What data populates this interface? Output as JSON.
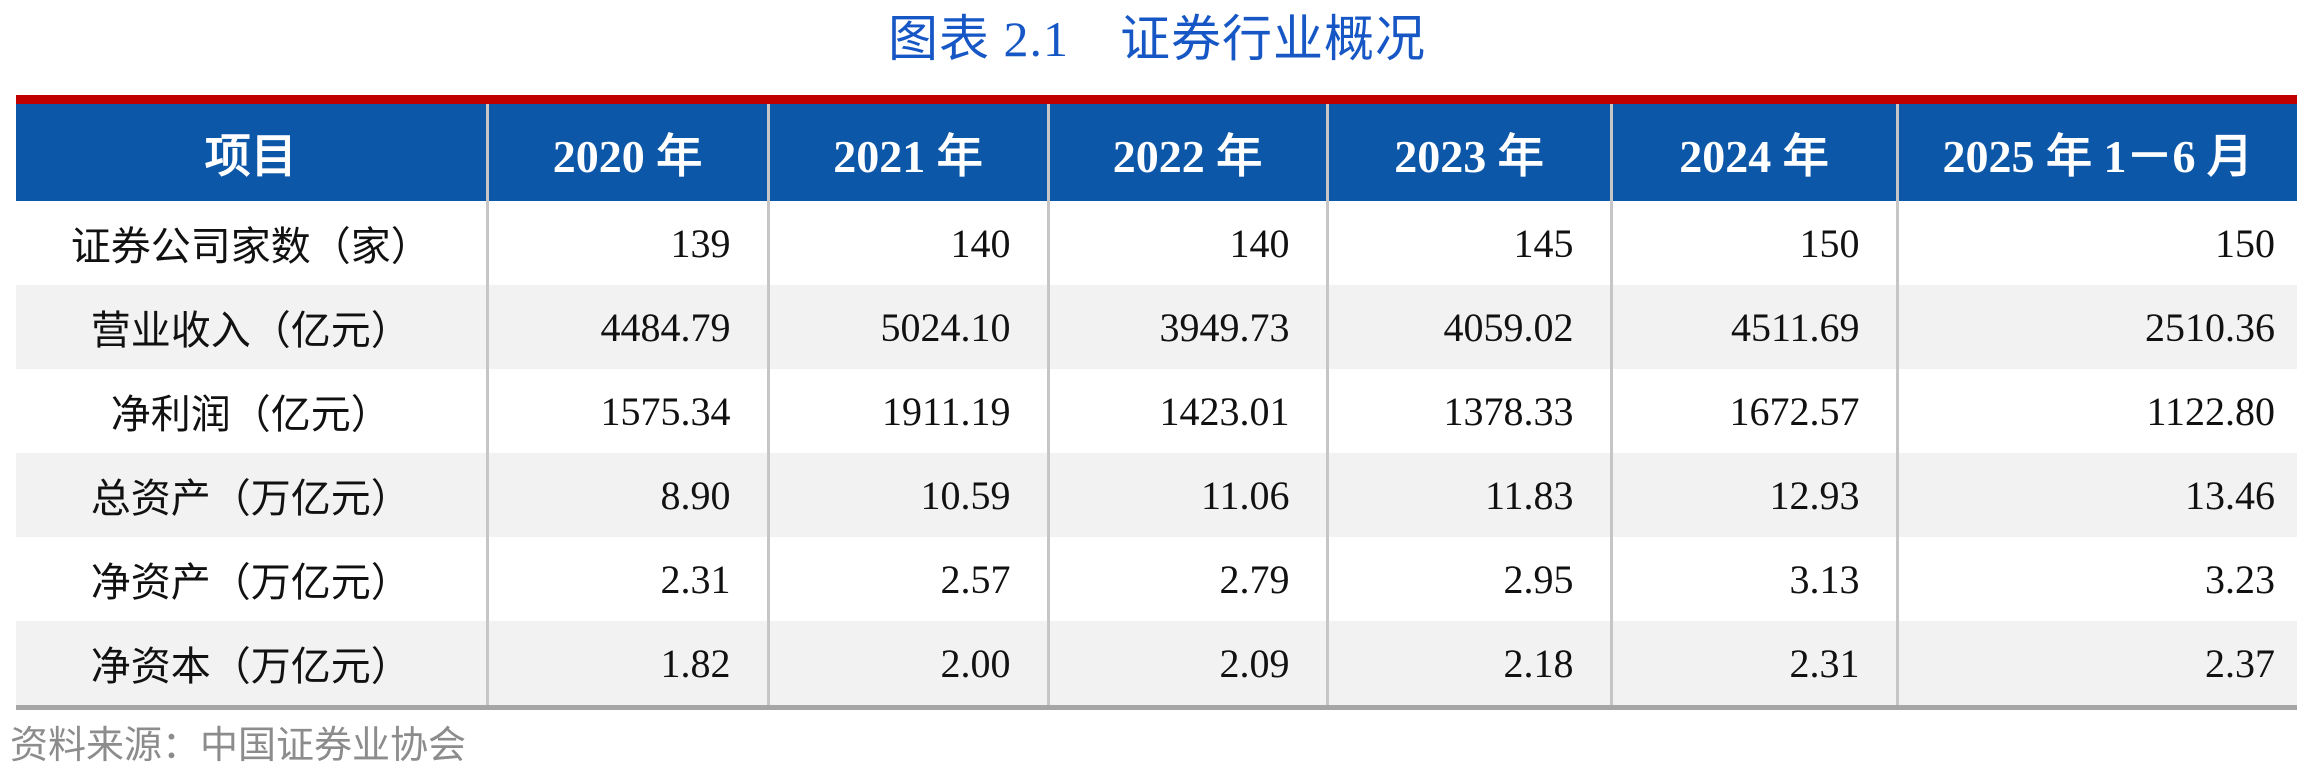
{
  "title": "图表 2.1　证券行业概况",
  "table": {
    "columns": [
      "项目",
      "2020 年",
      "2021 年",
      "2022 年",
      "2023 年",
      "2024 年",
      "2025 年 1－6 月"
    ],
    "rows": [
      {
        "label": "证券公司家数（家）",
        "values": [
          "139",
          "140",
          "140",
          "145",
          "150",
          "150"
        ]
      },
      {
        "label": "营业收入（亿元）",
        "values": [
          "4484.79",
          "5024.10",
          "3949.73",
          "4059.02",
          "4511.69",
          "2510.36"
        ]
      },
      {
        "label": "净利润（亿元）",
        "values": [
          "1575.34",
          "1911.19",
          "1423.01",
          "1378.33",
          "1672.57",
          "1122.80"
        ]
      },
      {
        "label": "总资产（万亿元）",
        "values": [
          "8.90",
          "10.59",
          "11.06",
          "11.83",
          "12.93",
          "13.46"
        ]
      },
      {
        "label": "净资产（万亿元）",
        "values": [
          "2.31",
          "2.57",
          "2.79",
          "2.95",
          "3.13",
          "3.23"
        ]
      },
      {
        "label": "净资本（万亿元）",
        "values": [
          "1.82",
          "2.00",
          "2.09",
          "2.18",
          "2.31",
          "2.37"
        ]
      }
    ]
  },
  "footer": {
    "source": "资料来源：中国证券业协会"
  },
  "colors": {
    "title_blue": "#1657C5",
    "header_bg": "#0D57A9",
    "top_rule_red": "#C00000",
    "row_alt_gray": "#F2F2F2",
    "divider_gray": "#C6C6C6",
    "bottom_border_gray": "#A6A6A6",
    "source_text_gray": "#8C8C8C"
  }
}
